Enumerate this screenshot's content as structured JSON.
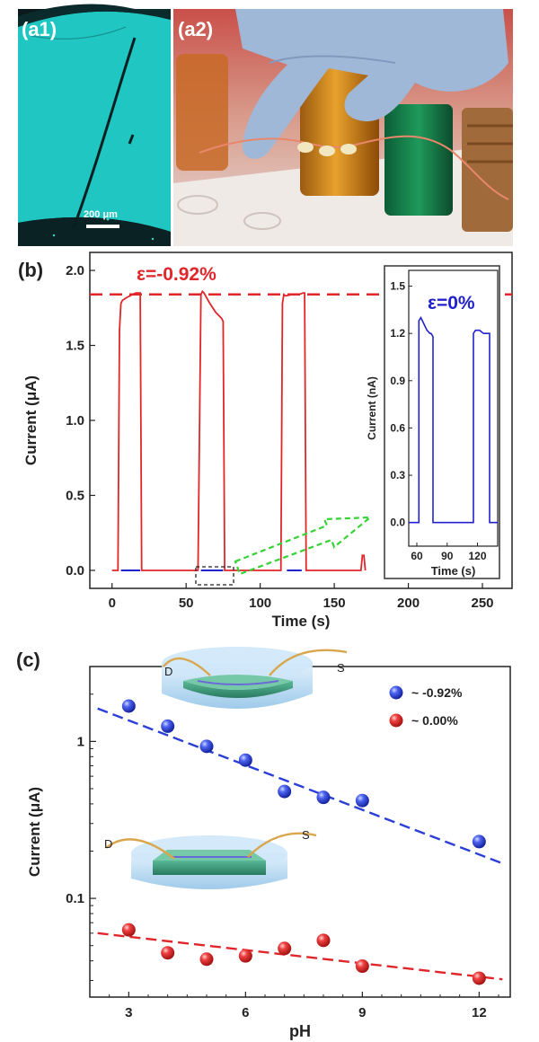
{
  "panel_a": {
    "a1_label": "(a1)",
    "a2_label": "(a2)",
    "scale_bar": "200 μm"
  },
  "panel_b": {
    "label": "(b)",
    "annotation_strained": "ε=-0.92%",
    "annotation_inset": "ε=0%"
  },
  "panel_c": {
    "label": "(c)",
    "device_terminal_d": "D",
    "device_terminal_s": "S"
  },
  "colors": {
    "red": "#e0262a",
    "blue": "#2222cc",
    "cyan": "#1fc6c2",
    "axis": "#222222"
  },
  "chart_data": [
    {
      "id": "b-main",
      "type": "line",
      "xlabel": "Time (s)",
      "ylabel": "Current (μA)",
      "xlim": [
        -15,
        270
      ],
      "ylim": [
        -0.12,
        2.12
      ],
      "xticks": [
        0,
        50,
        100,
        150,
        200,
        250
      ],
      "yticks": [
        0.0,
        0.5,
        1.0,
        1.5,
        2.0
      ],
      "tick_labels_x": [
        "0",
        "50",
        "100",
        "150",
        "200",
        "250"
      ],
      "tick_labels_y": [
        "0.0",
        "0.5",
        "1.0",
        "1.5",
        "2.0"
      ],
      "reference_line": {
        "y": 1.84,
        "style": "dashed"
      },
      "series": [
        {
          "color": "#e0262a",
          "x": [
            0,
            4,
            5,
            6,
            7,
            10,
            14,
            16,
            19,
            20,
            58,
            60,
            61,
            62,
            66,
            70,
            74,
            75,
            76,
            114,
            115,
            116,
            117,
            122,
            126,
            129,
            130,
            131,
            168,
            169,
            170,
            171
          ],
          "y": [
            0,
            0,
            1.6,
            1.78,
            1.8,
            1.82,
            1.84,
            1.85,
            1.85,
            0,
            0,
            1.84,
            1.86,
            1.85,
            1.78,
            1.72,
            1.68,
            1.66,
            0,
            0,
            1.78,
            1.84,
            1.83,
            1.84,
            1.84,
            1.85,
            1.85,
            0,
            0,
            0.1,
            0.1,
            0
          ]
        },
        {
          "color": "#2222cc",
          "x": [
            6,
            19,
            60,
            75,
            118,
            128
          ],
          "y": [
            0,
            0,
            0,
            0,
            0,
            0
          ],
          "segments": true
        }
      ]
    },
    {
      "id": "b-inset",
      "type": "line",
      "xlabel": "Time (s)",
      "ylabel": "Current (nA)",
      "xlim": [
        52,
        140
      ],
      "ylim": [
        -0.15,
        1.6
      ],
      "xticks": [
        60,
        90,
        120
      ],
      "yticks": [
        0.0,
        0.3,
        0.6,
        0.9,
        1.2,
        1.5
      ],
      "tick_labels_x": [
        "60",
        "90",
        "120"
      ],
      "tick_labels_y": [
        "0.0",
        "0.3",
        "0.6",
        "0.9",
        "1.2",
        "1.5"
      ],
      "series": [
        {
          "color": "#2222cc",
          "x": [
            52,
            62,
            62,
            64,
            67,
            70,
            73,
            74,
            76,
            76,
            116,
            116,
            118,
            122,
            126,
            130,
            132,
            132,
            140
          ],
          "y": [
            0,
            0,
            1.28,
            1.3,
            1.26,
            1.22,
            1.2,
            1.2,
            1.18,
            0,
            0,
            1.2,
            1.22,
            1.22,
            1.2,
            1.2,
            1.2,
            0,
            0
          ]
        }
      ]
    },
    {
      "id": "c-ph",
      "type": "scatter",
      "xlabel": "pH",
      "ylabel": "Current (μA)",
      "yscale": "log",
      "xlim": [
        2,
        12.8
      ],
      "ylim": [
        0.0235,
        3.0
      ],
      "xticks": [
        3,
        6,
        9,
        12
      ],
      "yticks": [
        0.1,
        1
      ],
      "tick_labels_x": [
        "3",
        "6",
        "9",
        "12"
      ],
      "tick_labels_y": [
        "0.1",
        "1"
      ],
      "legend": "top-right",
      "series": [
        {
          "name": "~ -0.92%",
          "color": "#2a3fd6",
          "x": [
            3,
            4,
            5,
            6,
            7,
            8,
            9,
            12
          ],
          "y": [
            1.68,
            1.25,
            0.93,
            0.76,
            0.48,
            0.44,
            0.42,
            0.23
          ],
          "fit": {
            "x": [
              2.2,
              12.6
            ],
            "y": [
              1.62,
              0.167
            ]
          }
        },
        {
          "name": "~ 0.00%",
          "color": "#e0262a",
          "x": [
            3,
            4,
            5,
            6,
            7,
            8,
            9,
            12
          ],
          "y": [
            0.063,
            0.045,
            0.041,
            0.043,
            0.048,
            0.054,
            0.037,
            0.031
          ],
          "fit": {
            "x": [
              2.2,
              12.6
            ],
            "y": [
              0.06,
              0.0305
            ]
          }
        }
      ]
    }
  ]
}
